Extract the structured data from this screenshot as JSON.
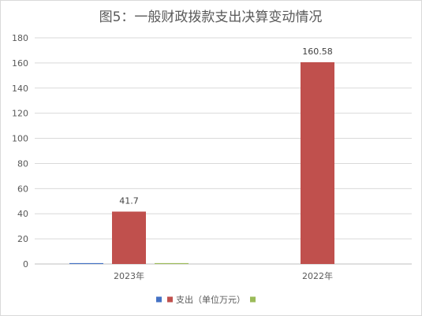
{
  "chart_data": {
    "type": "bar",
    "title": "图5：一般财政拨款支出决算变动情况",
    "categories": [
      "2023年",
      "2022年"
    ],
    "series": [
      {
        "name": "",
        "color": "#4472C4",
        "values": [
          0.7,
          0
        ]
      },
      {
        "name": "支出（单位万元）",
        "color": "#C0504D",
        "values": [
          41.7,
          160.58
        ]
      },
      {
        "name": "",
        "color": "#9BBB59",
        "values": [
          0.7,
          0
        ]
      }
    ],
    "data_labels": [
      "41.7",
      "160.58"
    ],
    "ylim": [
      0,
      180
    ],
    "yticks": [
      0,
      20,
      40,
      60,
      80,
      100,
      120,
      140,
      160,
      180
    ],
    "grid": true,
    "legend_position": "bottom"
  }
}
